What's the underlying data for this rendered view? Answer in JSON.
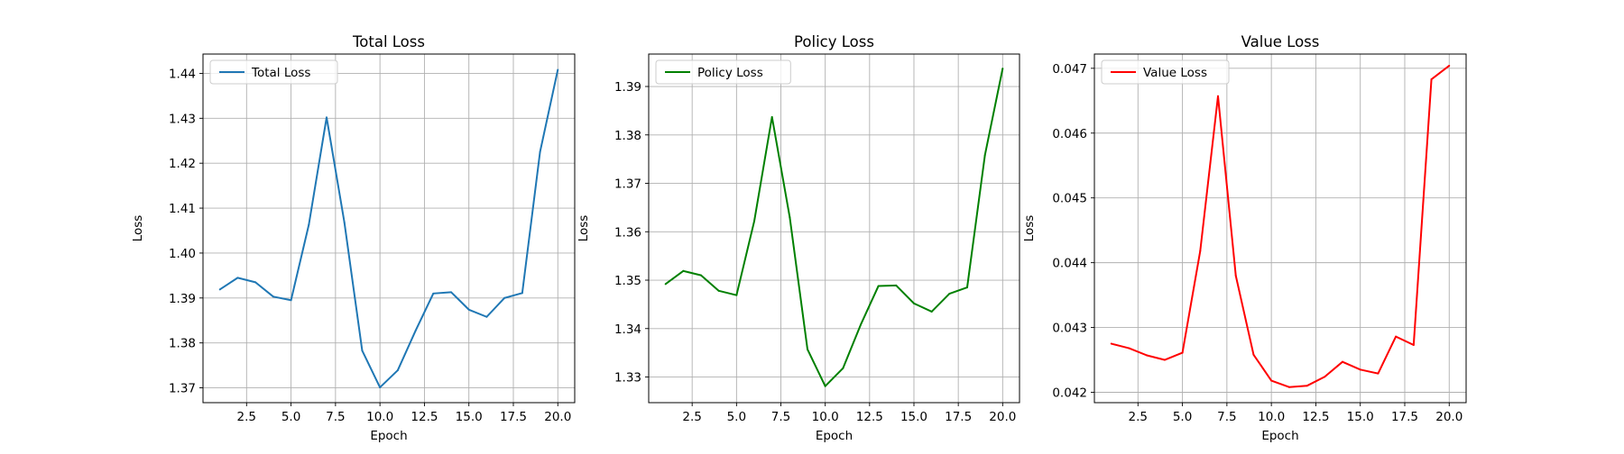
{
  "chart_data": [
    {
      "type": "line",
      "title": "Total Loss",
      "xlabel": "Epoch",
      "ylabel": "Loss",
      "grid": true,
      "legend_position": "top-left",
      "xlim": [
        0.05,
        20.95
      ],
      "ylim": [
        1.3667,
        1.4443
      ],
      "xticks": [
        2.5,
        5.0,
        7.5,
        10.0,
        12.5,
        15.0,
        17.5,
        20.0
      ],
      "xtick_labels": [
        "2.5",
        "5.0",
        "7.5",
        "10.0",
        "12.5",
        "15.0",
        "17.5",
        "20.0"
      ],
      "yticks": [
        1.37,
        1.38,
        1.39,
        1.4,
        1.41,
        1.42,
        1.43,
        1.44
      ],
      "ytick_labels": [
        "1.37",
        "1.38",
        "1.39",
        "1.40",
        "1.41",
        "1.42",
        "1.43",
        "1.44"
      ],
      "series": [
        {
          "name": "Total Loss",
          "color": "#1f77b4",
          "x": [
            1,
            2,
            3,
            4,
            5,
            6,
            7,
            8,
            9,
            10,
            11,
            12,
            13,
            14,
            15,
            16,
            17,
            18,
            19,
            20
          ],
          "y": [
            1.3919,
            1.3945,
            1.3935,
            1.3903,
            1.3895,
            1.4063,
            1.4302,
            1.4068,
            1.3783,
            1.3701,
            1.3739,
            1.3827,
            1.391,
            1.3913,
            1.3874,
            1.3858,
            1.39,
            1.3911,
            1.4225,
            1.4408
          ]
        }
      ]
    },
    {
      "type": "line",
      "title": "Policy Loss",
      "xlabel": "Epoch",
      "ylabel": "Loss",
      "grid": true,
      "legend_position": "top-left",
      "xlim": [
        0.05,
        20.95
      ],
      "ylim": [
        1.3247,
        1.3967
      ],
      "xticks": [
        2.5,
        5.0,
        7.5,
        10.0,
        12.5,
        15.0,
        17.5,
        20.0
      ],
      "xtick_labels": [
        "2.5",
        "5.0",
        "7.5",
        "10.0",
        "12.5",
        "15.0",
        "17.5",
        "20.0"
      ],
      "yticks": [
        1.33,
        1.34,
        1.35,
        1.36,
        1.37,
        1.38,
        1.39
      ],
      "ytick_labels": [
        "1.33",
        "1.34",
        "1.35",
        "1.36",
        "1.37",
        "1.38",
        "1.39"
      ],
      "series": [
        {
          "name": "Policy Loss",
          "color": "#008000",
          "x": [
            1,
            2,
            3,
            4,
            5,
            6,
            7,
            8,
            9,
            10,
            11,
            12,
            13,
            14,
            15,
            16,
            17,
            18,
            19,
            20
          ],
          "y": [
            1.3492,
            1.3519,
            1.351,
            1.3478,
            1.3469,
            1.3622,
            1.3837,
            1.363,
            1.3357,
            1.3281,
            1.3318,
            1.3408,
            1.3488,
            1.3489,
            1.3452,
            1.3435,
            1.3472,
            1.3485,
            1.3758,
            1.3937
          ]
        }
      ]
    },
    {
      "type": "line",
      "title": "Value Loss",
      "xlabel": "Epoch",
      "ylabel": "Loss",
      "grid": true,
      "legend_position": "top-left",
      "xlim": [
        0.05,
        20.95
      ],
      "ylim": [
        0.04184,
        0.04722
      ],
      "xticks": [
        2.5,
        5.0,
        7.5,
        10.0,
        12.5,
        15.0,
        17.5,
        20.0
      ],
      "xtick_labels": [
        "2.5",
        "5.0",
        "7.5",
        "10.0",
        "12.5",
        "15.0",
        "17.5",
        "20.0"
      ],
      "yticks": [
        0.042,
        0.043,
        0.044,
        0.045,
        0.046,
        0.047
      ],
      "ytick_labels": [
        "0.042",
        "0.043",
        "0.044",
        "0.045",
        "0.046",
        "0.047"
      ],
      "series": [
        {
          "name": "Value Loss",
          "color": "#ff0000",
          "x": [
            1,
            2,
            3,
            4,
            5,
            6,
            7,
            8,
            9,
            10,
            11,
            12,
            13,
            14,
            15,
            16,
            17,
            18,
            19,
            20
          ],
          "y": [
            0.04275,
            0.04268,
            0.04257,
            0.0425,
            0.04261,
            0.04418,
            0.04657,
            0.0438,
            0.04258,
            0.04218,
            0.04208,
            0.0421,
            0.04224,
            0.04247,
            0.04235,
            0.04229,
            0.04286,
            0.04273,
            0.04683,
            0.04704
          ]
        }
      ]
    }
  ]
}
